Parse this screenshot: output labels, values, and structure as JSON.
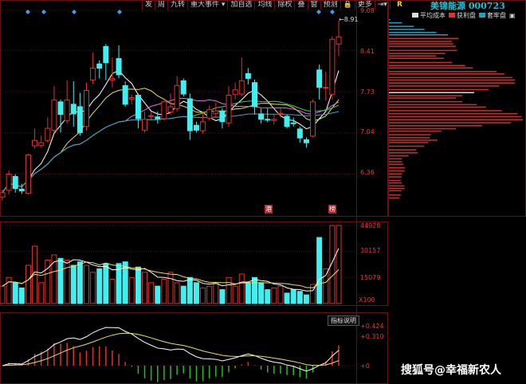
{
  "toolbar": {
    "items": [
      "发",
      "周",
      "九转",
      "重大事件 ▾",
      "加自选",
      "均线",
      "除权",
      "叠",
      "窗",
      "预测",
      "🔒",
      "更多",
      "⇥▾"
    ]
  },
  "price_axis": {
    "ticks": [
      "9.08",
      "8.41",
      "7.73",
      "7.04",
      "6.36"
    ],
    "latest_high_label": "←8.91"
  },
  "volume_axis": {
    "ticks": [
      "44928",
      "30157",
      "15079"
    ],
    "unit": "X100"
  },
  "macd_axis": {
    "ticks": [
      "+0.424",
      "+0.310",
      "+0"
    ]
  },
  "indicator_button": "指标说明",
  "event_markers": [
    "港",
    "榜"
  ],
  "right_panel": {
    "mode": "R",
    "stock_name": "美锦能源",
    "stock_code": "000723",
    "legend": [
      {
        "label": "平均成本",
        "color": "#dddddd"
      },
      {
        "label": "获利盘",
        "color": "#e03030"
      },
      {
        "label": "套牢盘",
        "color": "#22a0c0"
      }
    ]
  },
  "watermark": "搜狐号@幸福新农人",
  "colors": {
    "up": "#e03030",
    "down": "#40f0f0",
    "grid": "#5a1010",
    "ma": [
      "#ffffff",
      "#e8e060",
      "#e070e0",
      "#40d040",
      "#40a0c0"
    ]
  },
  "chart_data": [
    {
      "type": "candlestick",
      "ylim": [
        5.65,
        9.25
      ],
      "ohlc_fields": [
        "open",
        "close",
        "high",
        "low"
      ],
      "candles": [
        [
          5.98,
          6.05,
          6.1,
          5.92
        ],
        [
          6.09,
          6.36,
          6.42,
          6.02
        ],
        [
          6.32,
          6.12,
          6.36,
          6.05
        ],
        [
          6.11,
          6.08,
          6.2,
          6.03
        ],
        [
          6.04,
          6.68,
          6.7,
          6.02
        ],
        [
          6.83,
          6.92,
          7.12,
          6.78
        ],
        [
          6.84,
          6.88,
          7.0,
          6.8
        ],
        [
          6.92,
          7.12,
          7.3,
          6.88
        ],
        [
          7.09,
          7.59,
          7.82,
          7.05
        ],
        [
          7.56,
          7.35,
          7.6,
          7.05
        ],
        [
          7.25,
          7.59,
          7.92,
          7.2
        ],
        [
          7.52,
          7.36,
          7.9,
          7.15
        ],
        [
          7.48,
          7.05,
          7.71,
          7.0
        ],
        [
          7.15,
          7.75,
          7.88,
          7.08
        ],
        [
          7.92,
          8.12,
          8.38,
          7.85
        ],
        [
          8.19,
          8.12,
          8.25,
          7.95
        ],
        [
          8.48,
          8.21,
          8.52,
          7.92
        ],
        [
          7.92,
          7.95,
          8.3,
          7.8
        ],
        [
          8.28,
          8.01,
          8.5,
          7.95
        ],
        [
          7.83,
          7.52,
          7.9,
          7.48
        ],
        [
          7.6,
          7.63,
          7.68,
          7.52
        ],
        [
          7.67,
          7.28,
          7.7,
          7.12
        ],
        [
          7.09,
          7.27,
          7.4,
          7.05
        ],
        [
          7.32,
          7.33,
          7.4,
          7.25
        ],
        [
          7.31,
          7.28,
          7.4,
          7.2
        ],
        [
          7.28,
          7.56,
          7.62,
          7.25
        ],
        [
          7.39,
          7.48,
          7.7,
          7.35
        ],
        [
          7.45,
          7.83,
          7.99,
          7.4
        ],
        [
          7.91,
          7.69,
          7.95,
          7.65
        ],
        [
          7.61,
          7.08,
          7.7,
          6.93
        ],
        [
          7.17,
          7.09,
          7.23,
          7.05
        ],
        [
          7.08,
          7.23,
          7.4,
          7.03
        ],
        [
          7.29,
          7.43,
          7.5,
          7.25
        ],
        [
          7.37,
          7.41,
          7.55,
          7.3
        ],
        [
          7.41,
          7.23,
          7.45,
          7.12
        ],
        [
          7.21,
          7.67,
          7.82,
          7.15
        ],
        [
          7.68,
          7.76,
          7.88,
          7.6
        ],
        [
          7.69,
          7.91,
          8.3,
          7.65
        ],
        [
          8.03,
          7.95,
          8.12,
          7.85
        ],
        [
          7.88,
          7.48,
          7.93,
          7.35
        ],
        [
          7.36,
          7.27,
          7.45,
          7.2
        ],
        [
          7.27,
          7.26,
          7.45,
          7.22
        ],
        [
          7.25,
          7.27,
          7.35,
          7.18
        ],
        [
          7.36,
          7.37,
          7.45,
          7.3
        ],
        [
          7.32,
          7.15,
          7.35,
          7.12
        ],
        [
          7.21,
          7.2,
          7.3,
          7.15
        ],
        [
          7.11,
          6.96,
          7.15,
          6.88
        ],
        [
          6.93,
          6.88,
          6.97,
          6.8
        ],
        [
          6.99,
          7.56,
          7.6,
          6.97
        ],
        [
          8.09,
          7.8,
          8.18,
          7.6
        ],
        [
          7.79,
          7.8,
          8.06,
          7.58
        ],
        [
          7.68,
          8.6,
          8.65,
          7.6
        ],
        [
          8.52,
          8.64,
          8.91,
          8.32
        ]
      ],
      "price_ticks": [
        9.08,
        8.41,
        7.73,
        7.04,
        6.36
      ]
    },
    {
      "type": "bar",
      "ylabel": "X100",
      "ylim": [
        0,
        44928
      ],
      "values": [
        10000,
        15000,
        12000,
        9000,
        22000,
        33000,
        12000,
        25000,
        28000,
        26000,
        25000,
        22000,
        24000,
        22000,
        18000,
        20000,
        23000,
        14000,
        23000,
        24000,
        15000,
        21000,
        18000,
        12000,
        10000,
        14000,
        18000,
        12000,
        10000,
        15000,
        12000,
        9000,
        10000,
        12000,
        8000,
        15000,
        10000,
        17000,
        12000,
        15000,
        12000,
        8000,
        9000,
        10000,
        6000,
        8000,
        7000,
        5000,
        11000,
        38000,
        20000,
        44928,
        44928
      ],
      "ticks": [
        44928,
        30157,
        15079
      ]
    },
    {
      "type": "line",
      "indicator": "MACD",
      "ticks": [
        0.424,
        0.31,
        0
      ]
    },
    {
      "type": "horizontal-bar",
      "prices": [
        8.92,
        8.87,
        8.81,
        8.76,
        8.71,
        8.67,
        8.61,
        8.56,
        8.52,
        8.48,
        8.41,
        8.36,
        8.32,
        8.28,
        8.21,
        8.16,
        8.12,
        8.06,
        8.02,
        7.96,
        7.92,
        7.87,
        7.82,
        7.76,
        7.71,
        7.66,
        7.62,
        7.56,
        7.51,
        7.47,
        7.41,
        7.36,
        7.31,
        7.26,
        7.21,
        7.16,
        7.11,
        7.07,
        7.01,
        6.96,
        6.92,
        6.88,
        6.82,
        6.76,
        6.71,
        6.66,
        6.61,
        6.56,
        6.52,
        6.46,
        6.41,
        6.36,
        6.31,
        6.25,
        6.21,
        6.16,
        6.12,
        6.08,
        6.01,
        5.96
      ],
      "values": [
        5,
        50,
        95,
        135,
        180,
        225,
        265,
        240,
        245,
        255,
        260,
        215,
        180,
        210,
        240,
        290,
        320,
        410,
        440,
        470,
        480,
        480,
        420,
        380,
        325,
        280,
        255,
        280,
        335,
        370,
        430,
        490,
        505,
        510,
        465,
        355,
        255,
        200,
        160,
        155,
        185,
        150,
        135,
        105,
        110,
        75,
        50,
        50,
        55,
        62,
        60,
        50,
        48,
        45,
        50,
        58,
        60,
        48,
        45,
        40
      ],
      "trapped_above_price": 8.64,
      "average_cost_price": 7.71
    }
  ]
}
